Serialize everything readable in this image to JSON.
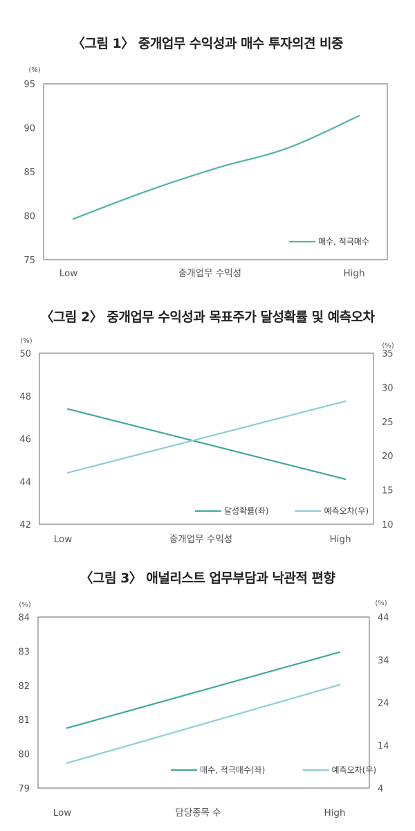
{
  "chart_data": [
    {
      "type": "line",
      "title": "〈그림 1〉 중개업무 수익성과 매수 투자의견 비중",
      "categories": [
        "Low",
        "중개업무 수익성",
        "High"
      ],
      "ylabel_unit": "(%)",
      "ylim": [
        75,
        95
      ],
      "yticks": [
        "95",
        "90",
        "85",
        "80",
        "75"
      ],
      "series": [
        {
          "name": "매수, 적극매수",
          "axis": "left",
          "color": "#4fb3aa",
          "x": [
            0,
            0.25,
            0.5,
            0.75,
            1.0
          ],
          "values": [
            79.6,
            82.7,
            85.4,
            87.7,
            91.4
          ]
        }
      ],
      "legend": "bottom-right"
    },
    {
      "type": "line",
      "title": "〈그림 2〉 중개업무 수익성과 목표주가 달성확률 및 예측오차",
      "categories": [
        "Low",
        "중개업무 수익성",
        "High"
      ],
      "ylabel_unit_left": "(%)",
      "ylabel_unit_right": "(%)",
      "ylim_left": [
        42,
        50
      ],
      "ylim_right": [
        10,
        35
      ],
      "yticks_left": [
        "50",
        "48",
        "46",
        "44",
        "42"
      ],
      "yticks_right": [
        "35",
        "30",
        "25",
        "20",
        "15",
        "10"
      ],
      "series": [
        {
          "name": "달성확률(좌)",
          "axis": "left",
          "color": "#3fa89e",
          "x": [
            0,
            1
          ],
          "values": [
            47.4,
            44.1
          ]
        },
        {
          "name": "예측오차(우)",
          "axis": "right",
          "color": "#8ccfd6",
          "x": [
            0,
            1
          ],
          "values": [
            17.5,
            28.0
          ]
        }
      ],
      "legend": "bottom-right"
    },
    {
      "type": "line",
      "title": "〈그림 3〉 애널리스트 업무부담과 낙관적 편향",
      "categories": [
        "Low",
        "담당종목 수",
        "High"
      ],
      "ylabel_unit_left": "(%)",
      "ylabel_unit_right": "(%)",
      "ylim_left": [
        79,
        84
      ],
      "ylim_right": [
        4,
        44
      ],
      "yticks_left": [
        "84",
        "83",
        "82",
        "81",
        "80",
        "79"
      ],
      "yticks_right": [
        "44",
        "34",
        "24",
        "14",
        "4"
      ],
      "series": [
        {
          "name": "매수, 적극매수(좌)",
          "axis": "left",
          "color": "#3fa89e",
          "x": [
            0,
            1
          ],
          "values": [
            80.75,
            82.98
          ]
        },
        {
          "name": "예측오차(우)",
          "axis": "right",
          "color": "#8ccfd6",
          "x": [
            0,
            1
          ],
          "values": [
            9.8,
            28.2
          ]
        }
      ],
      "legend": "bottom-right"
    }
  ]
}
